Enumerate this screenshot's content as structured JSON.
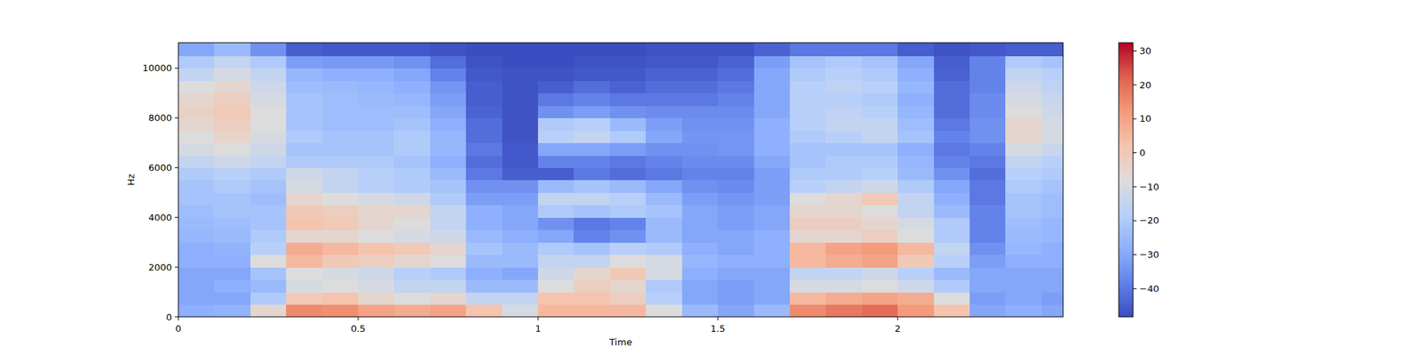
{
  "chart_data": {
    "type": "heatmap",
    "x_label": "Time",
    "y_label": "Hz",
    "xlim": [
      0,
      2.46
    ],
    "ylim": [
      0,
      11025
    ],
    "xticks": [
      0,
      0.5,
      1,
      1.5,
      2
    ],
    "yticks": [
      0,
      2000,
      4000,
      6000,
      8000,
      10000
    ],
    "x_edges": [
      0,
      0.1,
      0.2,
      0.3,
      0.4,
      0.5,
      0.6,
      0.7,
      0.8,
      0.9,
      1.0,
      1.1,
      1.2,
      1.3,
      1.4,
      1.5,
      1.6,
      1.7,
      1.8,
      1.9,
      2.0,
      2.1,
      2.2,
      2.3,
      2.4,
      2.46
    ],
    "y_edges": [
      0,
      500,
      1000,
      1500,
      2000,
      2500,
      3000,
      3500,
      4000,
      4500,
      5000,
      5500,
      6000,
      6500,
      7000,
      7500,
      8000,
      8500,
      9000,
      9500,
      10000,
      10500,
      11025
    ],
    "values": [
      [
        -28,
        -30,
        -30,
        -30,
        -28,
        -28,
        -26,
        -25,
        -24,
        -22,
        -22,
        -20,
        -15,
        -10,
        -8,
        -5,
        -3,
        -5,
        -8,
        -15,
        -20,
        -30
      ],
      [
        -27,
        -30,
        -28,
        -30,
        -28,
        -27,
        -25,
        -24,
        -22,
        -22,
        -20,
        -18,
        -12,
        -8,
        -4,
        -2,
        0,
        -2,
        -5,
        -10,
        -15,
        -25
      ],
      [
        -5,
        -20,
        -25,
        -22,
        -8,
        -18,
        -20,
        -22,
        -22,
        -24,
        -22,
        -20,
        -15,
        -12,
        -10,
        -8,
        -8,
        -10,
        -12,
        -15,
        -20,
        -35
      ],
      [
        15,
        0,
        -10,
        -8,
        5,
        8,
        -5,
        2,
        0,
        -5,
        -10,
        -12,
        -20,
        -22,
        -20,
        -22,
        -22,
        -22,
        -24,
        -26,
        -32,
        -45
      ],
      [
        14,
        2,
        -8,
        -10,
        0,
        5,
        -5,
        0,
        -2,
        -8,
        -15,
        -15,
        -20,
        -22,
        -22,
        -24,
        -24,
        -24,
        -25,
        -28,
        -33,
        -46
      ],
      [
        10,
        -5,
        -10,
        -12,
        -2,
        2,
        -8,
        -5,
        -5,
        -10,
        -18,
        -18,
        -20,
        -22,
        -22,
        -24,
        -24,
        -25,
        -26,
        -28,
        -33,
        -46
      ],
      [
        8,
        -8,
        -15,
        -18,
        -5,
        0,
        -10,
        -8,
        -5,
        -12,
        -20,
        -20,
        -22,
        -20,
        -20,
        -22,
        -24,
        -26,
        -28,
        -30,
        -35,
        -46
      ],
      [
        10,
        -5,
        -15,
        -20,
        -8,
        -5,
        -12,
        -15,
        -15,
        -20,
        -22,
        -25,
        -28,
        -26,
        -26,
        -28,
        -30,
        -32,
        -34,
        -38,
        -42,
        -47
      ],
      [
        2,
        -15,
        -25,
        -28,
        -25,
        -22,
        -25,
        -28,
        -28,
        -32,
        -35,
        -40,
        -42,
        -40,
        -42,
        -42,
        -44,
        -45,
        -45,
        -46,
        -47,
        -48
      ],
      [
        -10,
        -15,
        -25,
        -30,
        -25,
        -25,
        -28,
        -30,
        -30,
        -32,
        -35,
        -45,
        -46,
        -46,
        -47,
        -47,
        -47,
        -47,
        -47,
        -47,
        -48,
        -48
      ],
      [
        5,
        2,
        -8,
        -12,
        -15,
        -20,
        -30,
        -35,
        -20,
        -15,
        -25,
        -45,
        -38,
        -30,
        -18,
        -20,
        -35,
        -40,
        -45,
        -47,
        -48,
        -48
      ],
      [
        5,
        2,
        -2,
        -5,
        -15,
        -22,
        -38,
        -40,
        -22,
        -15,
        -22,
        -40,
        -38,
        -30,
        -15,
        -18,
        -32,
        -38,
        -42,
        -46,
        -47,
        -48
      ],
      [
        5,
        -2,
        -5,
        0,
        -8,
        -18,
        -35,
        -38,
        -20,
        -18,
        -25,
        -42,
        -40,
        -32,
        -20,
        -25,
        -35,
        -40,
        -44,
        -46,
        -47,
        -48
      ],
      [
        -8,
        -18,
        -20,
        -10,
        -10,
        -20,
        -25,
        -25,
        -22,
        -25,
        -30,
        -40,
        -38,
        -35,
        -30,
        -32,
        -36,
        -40,
        -42,
        -44,
        -46,
        -47
      ],
      [
        -25,
        -30,
        -30,
        -28,
        -26,
        -28,
        -30,
        -30,
        -30,
        -32,
        -35,
        -38,
        -36,
        -35,
        -34,
        -35,
        -36,
        -40,
        -42,
        -44,
        -46,
        -47
      ],
      [
        -30,
        -32,
        -32,
        -30,
        -28,
        -30,
        -30,
        -32,
        -32,
        -34,
        -36,
        -38,
        -36,
        -34,
        -34,
        -35,
        -36,
        -38,
        -40,
        -42,
        -44,
        -47
      ],
      [
        -25,
        -30,
        -30,
        -30,
        -28,
        -28,
        -28,
        -30,
        -30,
        -32,
        -32,
        -32,
        -30,
        -28,
        -28,
        -28,
        -30,
        -30,
        -30,
        -30,
        -32,
        -44
      ],
      [
        15,
        5,
        -10,
        -15,
        5,
        5,
        -5,
        -2,
        -5,
        -8,
        -18,
        -20,
        -22,
        -22,
        -20,
        -18,
        -18,
        -18,
        -18,
        -20,
        -22,
        -40
      ],
      [
        18,
        8,
        -10,
        -15,
        8,
        10,
        -5,
        -2,
        -5,
        -5,
        -15,
        -20,
        -20,
        -22,
        -18,
        -15,
        -16,
        -18,
        -16,
        -18,
        -20,
        -40
      ],
      [
        20,
        10,
        -8,
        -12,
        10,
        12,
        -2,
        -5,
        -8,
        0,
        -12,
        -18,
        -20,
        -22,
        -15,
        -15,
        -18,
        -20,
        -18,
        -20,
        -22,
        -40
      ],
      [
        12,
        8,
        -12,
        -18,
        0,
        5,
        -8,
        -10,
        -15,
        -15,
        -20,
        -25,
        -26,
        -28,
        -22,
        -24,
        -26,
        -28,
        -26,
        -28,
        -30,
        -45
      ],
      [
        2,
        -8,
        -20,
        -25,
        -18,
        -15,
        -20,
        -20,
        -25,
        -28,
        -30,
        -35,
        -38,
        -40,
        -38,
        -40,
        -42,
        -42,
        -42,
        -44,
        -45,
        -47
      ],
      [
        -30,
        -32,
        -30,
        -30,
        -32,
        -35,
        -38,
        -38,
        -38,
        -40,
        -40,
        -42,
        -40,
        -38,
        -35,
        -35,
        -36,
        -36,
        -38,
        -38,
        -38,
        -46
      ],
      [
        -28,
        -30,
        -30,
        -30,
        -28,
        -26,
        -25,
        -24,
        -22,
        -22,
        -20,
        -18,
        -15,
        -10,
        -5,
        -5,
        -8,
        -10,
        -12,
        -15,
        -20,
        -45
      ],
      [
        -30,
        -32,
        -30,
        -30,
        -28,
        -28,
        -26,
        -26,
        -24,
        -24,
        -22,
        -20,
        -18,
        -14,
        -10,
        -10,
        -12,
        -14,
        -16,
        -18,
        -22,
        -45
      ]
    ],
    "colorbar": {
      "range": [
        -48.3,
        32.4
      ],
      "ticks": [
        {
          "value": -40,
          "label": "−40"
        },
        {
          "value": -30,
          "label": "−30"
        },
        {
          "value": -20,
          "label": "−20"
        },
        {
          "value": -10,
          "label": "−10"
        },
        0,
        10,
        20,
        30
      ]
    }
  }
}
